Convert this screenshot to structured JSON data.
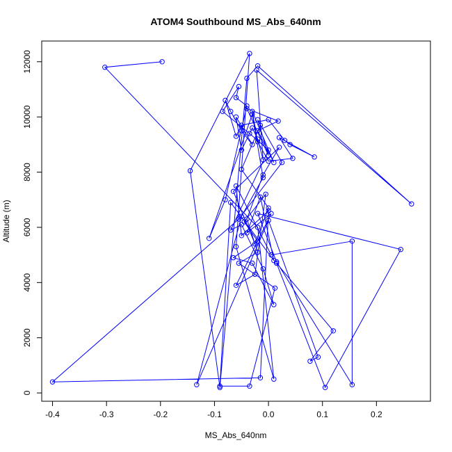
{
  "chart_data": {
    "type": "line",
    "title": "ATOM4 Southbound MS_Abs_640nm",
    "xlabel": "MS_Abs_640nm",
    "ylabel": "Altitude (m)",
    "xlim": [
      -0.42,
      0.3
    ],
    "ylim": [
      -300,
      12750
    ],
    "x_ticks": [
      -0.4,
      -0.3,
      -0.2,
      -0.1,
      0.0,
      0.1,
      0.2
    ],
    "x_tick_labels": [
      "-0.4",
      "-0.3",
      "-0.2",
      "-0.1",
      "0.0",
      "0.1",
      "0.2"
    ],
    "y_ticks": [
      0,
      2000,
      4000,
      6000,
      8000,
      10000,
      12000
    ],
    "y_tick_labels": [
      "0",
      "2000",
      "4000",
      "6000",
      "8000",
      "10000",
      "12000"
    ],
    "grid": false,
    "line_color": "#0000ff",
    "marker": "open-circle",
    "series": [
      {
        "x": [
          -0.197,
          -0.303,
          -0.02,
          0.01,
          -0.06,
          -0.035,
          -0.145,
          -0.09,
          -0.04,
          -0.02,
          0.265,
          -0.022,
          -0.01,
          -0.02,
          -0.03,
          -0.05,
          -0.06,
          -0.03,
          -0.05,
          -0.07,
          -0.08,
          -0.06,
          -0.05,
          0.0,
          0.03,
          0.04,
          0.085,
          0.02,
          0.045,
          0.0,
          -0.02,
          -0.03,
          0.01,
          -0.02,
          0.018,
          -0.04,
          0.0,
          -0.02,
          0.025,
          -0.055,
          -0.4,
          -0.015,
          0.0,
          -0.05,
          -0.06,
          0.005,
          0.155,
          0.155,
          0.015,
          -0.02,
          0.245,
          0.105,
          0.015,
          0.12,
          0.077,
          0.092,
          0.0,
          -0.133,
          -0.05,
          -0.01,
          -0.03,
          -0.11,
          -0.08,
          -0.04,
          -0.06,
          -0.055,
          -0.085,
          -0.035,
          0.0,
          -0.07,
          -0.05,
          -0.01,
          0.01,
          -0.03,
          -0.065,
          -0.02,
          -0.045,
          -0.005,
          -0.025,
          -0.06,
          0.005,
          -0.04,
          -0.015,
          0.01,
          -0.07,
          -0.09,
          -0.035,
          0.012,
          -0.055,
          -0.02,
          -0.04,
          -0.01,
          0.02,
          -0.065,
          -0.025,
          0.0,
          -0.05,
          -0.015
        ],
        "y": [
          12000,
          11800,
          6000,
          500,
          5300,
          12300,
          8050,
          200,
          11400,
          11850,
          6850,
          11700,
          8450,
          9200,
          9600,
          8800,
          10000,
          9000,
          9500,
          10200,
          10600,
          9300,
          9700,
          9900,
          9150,
          9000,
          8550,
          9250,
          8500,
          8400,
          9100,
          10200,
          8350,
          9500,
          9850,
          10300,
          8600,
          9900,
          8350,
          6300,
          400,
          550,
          6600,
          5700,
          7500,
          5000,
          5500,
          300,
          4750,
          6500,
          5200,
          200,
          4700,
          2250,
          1150,
          1300,
          6250,
          300,
          6400,
          7800,
          10100,
          5600,
          7000,
          10400,
          10700,
          11100,
          10200,
          9400,
          8800,
          5900,
          6100,
          4500,
          3200,
          4700,
          4900,
          5500,
          6200,
          7200,
          4300,
          3900,
          6500,
          5800,
          7100,
          4800,
          6900,
          250,
          250,
          3800,
          4700,
          5100,
          6300,
          7900,
          8900,
          7300,
          5400,
          6700,
          8100,
          9700
        ]
      }
    ]
  }
}
